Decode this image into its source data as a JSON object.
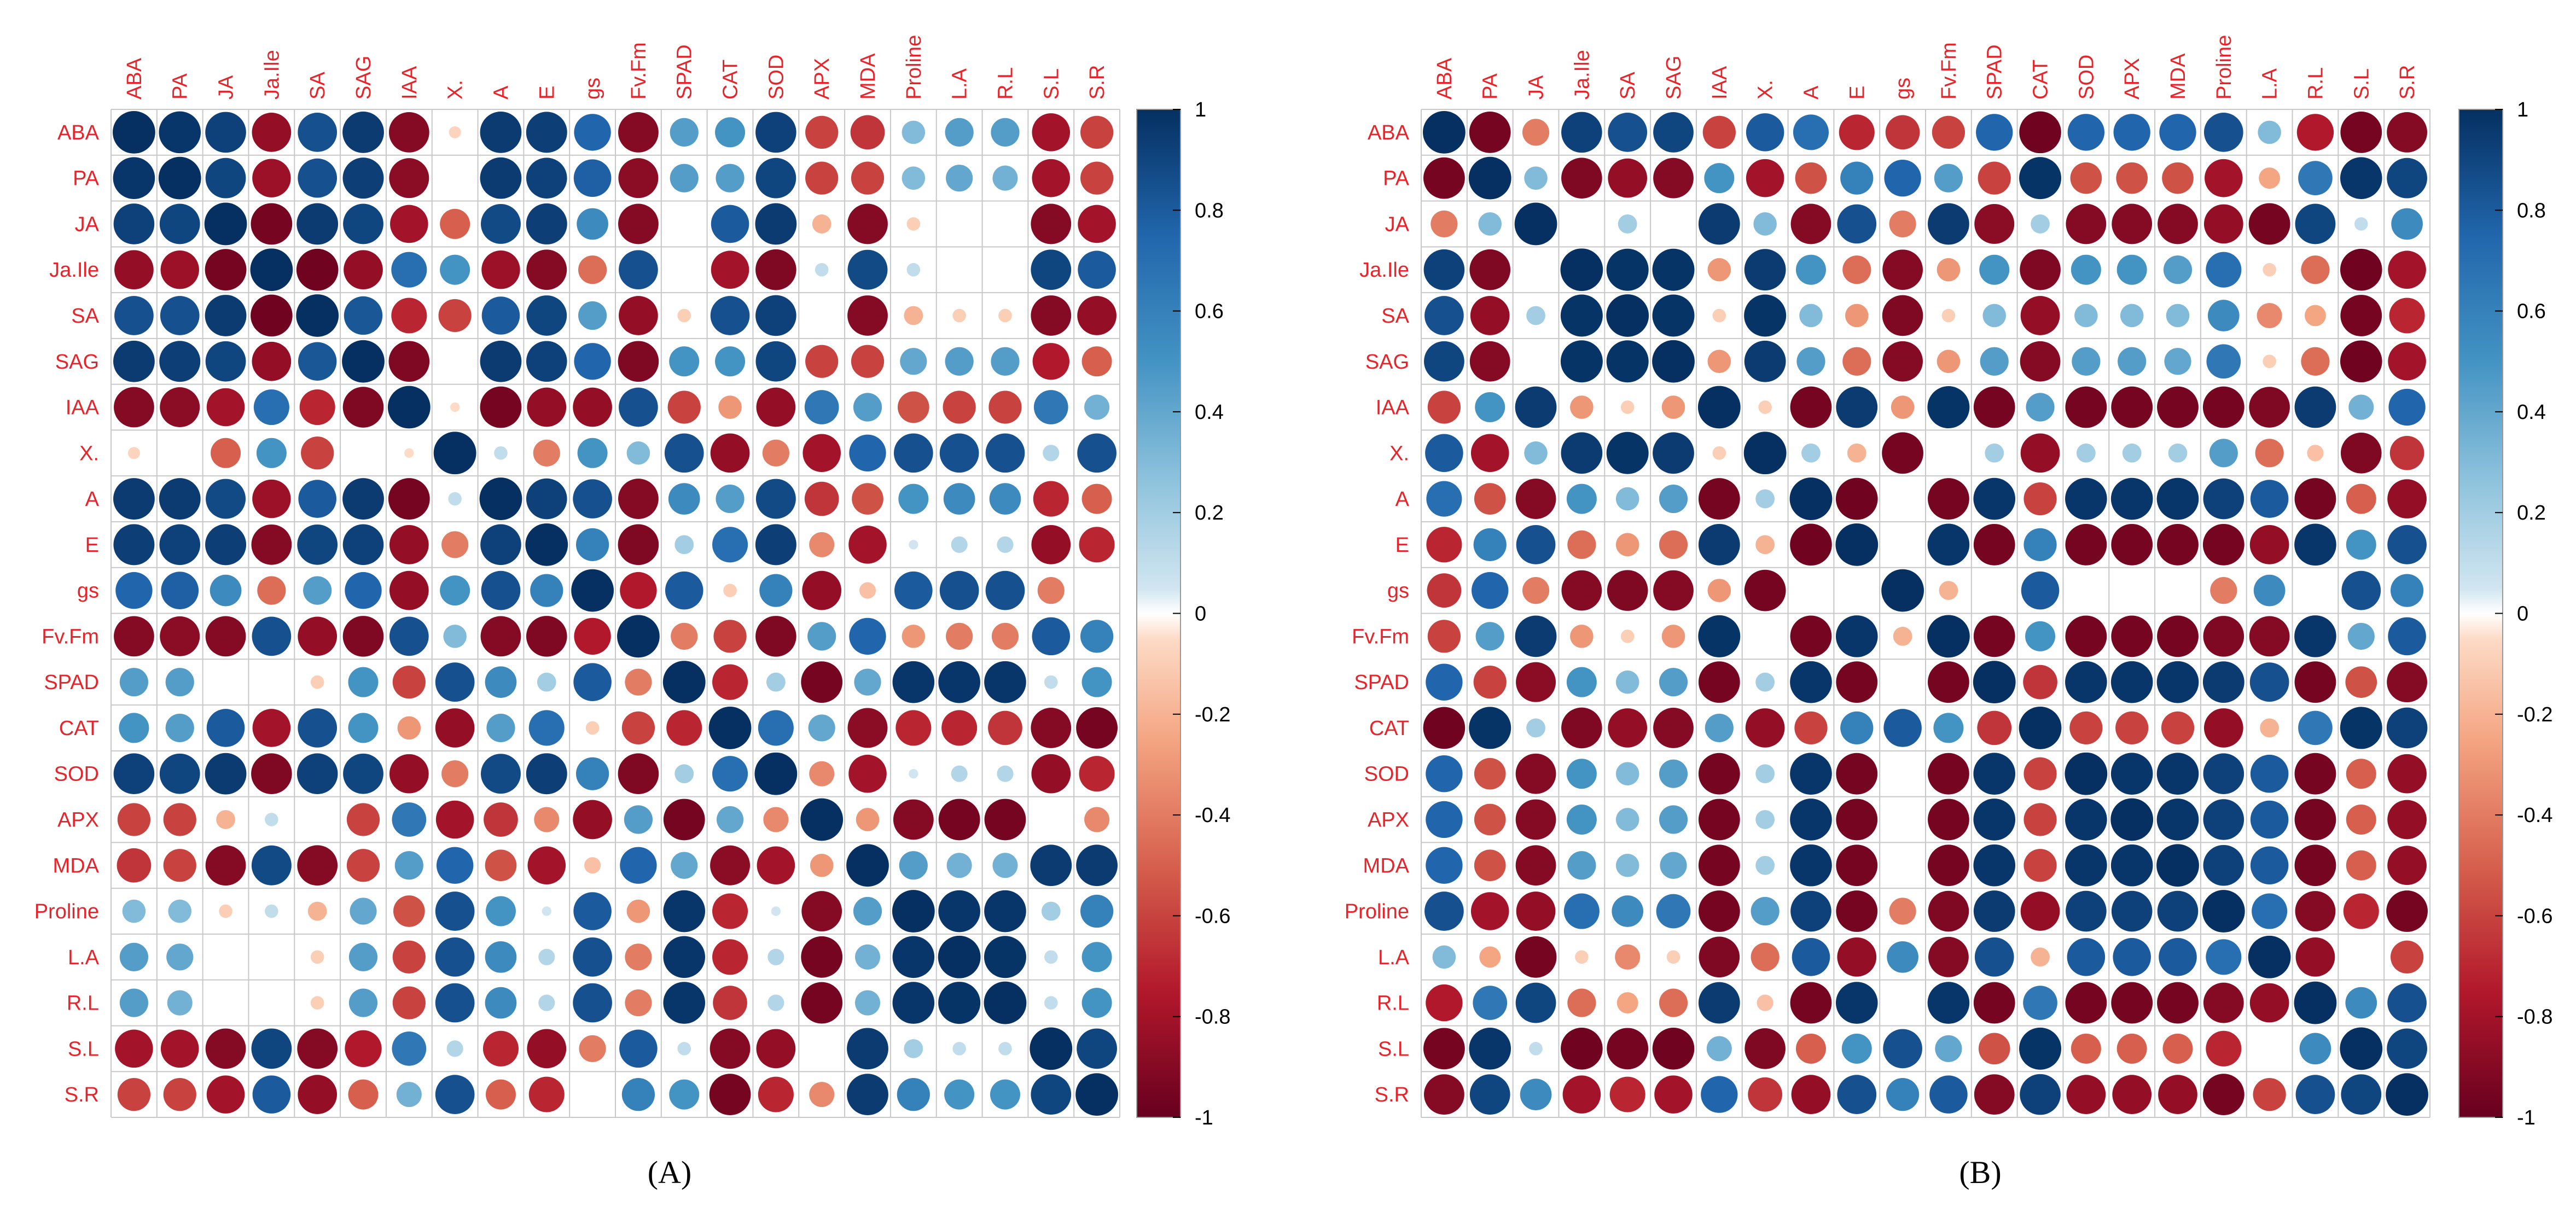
{
  "colors": {
    "neg": "#67001F",
    "mid": "#FFFFFF",
    "pos": "#053061",
    "label": "#E8242A",
    "grid": "#C8C8C8"
  },
  "colorbar": {
    "ticks": [
      "1",
      "0.8",
      "0.6",
      "0.4",
      "0.2",
      "0",
      "-0.2",
      "-0.4",
      "-0.6",
      "-0.8",
      "-1"
    ]
  },
  "panels": [
    {
      "label_text": "(A)"
    },
    {
      "label_text": "(B)"
    }
  ],
  "chart_data": [
    {
      "type": "heatmap",
      "title": "",
      "variables": [
        "ABA",
        "PA",
        "JA",
        "Ja.Ile",
        "SA",
        "SAG",
        "IAA",
        "X.",
        "A",
        "E",
        "gs",
        "Fv.Fm",
        "SPAD",
        "CAT",
        "SOD",
        "APX",
        "MDA",
        "Proline",
        "L.A",
        "R.L",
        "S.L",
        "S.R"
      ],
      "value_range": [
        -1,
        1
      ],
      "colorbar_ticks": [
        1,
        0.8,
        0.6,
        0.4,
        0.2,
        0,
        -0.2,
        -0.4,
        -0.6,
        -0.8,
        -1
      ],
      "matrix": [
        [
          1,
          0.97,
          0.92,
          -0.85,
          0.85,
          0.95,
          -0.9,
          -0.08,
          0.95,
          0.93,
          0.75,
          -0.9,
          0.45,
          0.5,
          0.92,
          -0.6,
          -0.65,
          0.3,
          0.45,
          0.45,
          -0.8,
          -0.6
        ],
        [
          0.97,
          1,
          0.9,
          -0.82,
          0.85,
          0.93,
          -0.88,
          0,
          0.95,
          0.92,
          0.78,
          -0.88,
          0.45,
          0.45,
          0.9,
          -0.6,
          -0.6,
          0.3,
          0.4,
          0.35,
          -0.8,
          -0.6
        ],
        [
          0.92,
          0.9,
          1,
          -0.95,
          0.95,
          0.9,
          -0.8,
          -0.5,
          0.88,
          0.93,
          0.55,
          -0.9,
          0,
          0.8,
          0.95,
          -0.2,
          -0.9,
          -0.1,
          0,
          0,
          -0.9,
          -0.8
        ],
        [
          -0.85,
          -0.82,
          -0.95,
          1,
          -0.97,
          -0.85,
          0.7,
          0.5,
          -0.82,
          -0.9,
          -0.45,
          0.85,
          0,
          -0.8,
          -0.92,
          0.1,
          0.88,
          0.1,
          0,
          0,
          0.9,
          0.8
        ],
        [
          0.85,
          0.85,
          0.95,
          -0.97,
          1,
          0.82,
          -0.7,
          -0.6,
          0.8,
          0.9,
          0.45,
          -0.85,
          -0.1,
          0.85,
          0.92,
          0,
          -0.9,
          -0.2,
          -0.1,
          -0.1,
          -0.9,
          -0.85
        ],
        [
          0.95,
          0.93,
          0.9,
          -0.85,
          0.82,
          1,
          -0.92,
          0,
          0.95,
          0.92,
          0.75,
          -0.92,
          0.5,
          0.5,
          0.9,
          -0.6,
          -0.6,
          0.4,
          0.45,
          0.45,
          -0.75,
          -0.5
        ],
        [
          -0.9,
          -0.88,
          -0.8,
          0.7,
          -0.7,
          -0.92,
          1,
          -0.05,
          -0.95,
          -0.85,
          -0.85,
          0.85,
          -0.6,
          -0.3,
          -0.85,
          0.65,
          0.45,
          -0.55,
          -0.6,
          -0.6,
          0.65,
          0.35
        ],
        [
          -0.08,
          0,
          -0.5,
          0.5,
          -0.6,
          0,
          -0.05,
          1,
          0.1,
          -0.4,
          0.5,
          0.3,
          0.85,
          -0.85,
          -0.4,
          -0.8,
          0.75,
          0.85,
          0.85,
          0.85,
          0.15,
          0.85
        ],
        [
          0.95,
          0.95,
          0.88,
          -0.82,
          0.8,
          0.95,
          -0.95,
          0.1,
          1,
          0.92,
          0.85,
          -0.9,
          0.55,
          0.45,
          0.88,
          -0.65,
          -0.55,
          0.5,
          0.55,
          0.55,
          -0.7,
          -0.5
        ],
        [
          0.93,
          0.92,
          0.93,
          -0.9,
          0.9,
          0.92,
          -0.85,
          -0.4,
          0.92,
          1,
          0.6,
          -0.92,
          0.2,
          0.7,
          0.93,
          -0.35,
          -0.8,
          0.05,
          0.15,
          0.15,
          -0.85,
          -0.7
        ],
        [
          0.75,
          0.78,
          0.55,
          -0.45,
          0.45,
          0.75,
          -0.85,
          0.5,
          0.85,
          0.6,
          1,
          -0.75,
          0.8,
          -0.1,
          0.6,
          -0.85,
          -0.15,
          0.8,
          0.85,
          0.85,
          -0.4,
          0
        ],
        [
          -0.9,
          -0.88,
          -0.9,
          0.85,
          -0.85,
          -0.92,
          0.85,
          0.3,
          -0.9,
          -0.92,
          -0.75,
          1,
          -0.4,
          -0.6,
          -0.92,
          0.45,
          0.75,
          -0.3,
          -0.4,
          -0.4,
          0.8,
          0.6
        ],
        [
          0.45,
          0.45,
          0,
          0,
          -0.1,
          0.5,
          -0.6,
          0.85,
          0.55,
          0.2,
          0.8,
          -0.4,
          1,
          -0.7,
          0.2,
          -0.95,
          0.4,
          0.97,
          0.97,
          0.97,
          0.1,
          0.5
        ],
        [
          0.5,
          0.45,
          0.8,
          -0.8,
          0.85,
          0.5,
          -0.3,
          -0.85,
          0.45,
          0.7,
          -0.1,
          -0.6,
          -0.7,
          1,
          0.7,
          0.4,
          -0.88,
          -0.7,
          -0.7,
          -0.65,
          -0.9,
          -0.95
        ],
        [
          0.92,
          0.9,
          0.95,
          -0.92,
          0.92,
          0.9,
          -0.85,
          -0.4,
          0.88,
          0.93,
          0.6,
          -0.92,
          0.2,
          0.7,
          1,
          -0.35,
          -0.8,
          0.05,
          0.15,
          0.15,
          -0.85,
          -0.7
        ],
        [
          -0.6,
          -0.6,
          -0.2,
          0.1,
          0,
          -0.6,
          0.65,
          -0.8,
          -0.65,
          -0.35,
          -0.85,
          0.45,
          -0.95,
          0.4,
          -0.35,
          1,
          -0.3,
          -0.9,
          -0.95,
          -0.95,
          0,
          -0.35
        ],
        [
          -0.65,
          -0.6,
          -0.9,
          0.88,
          -0.9,
          -0.6,
          0.45,
          0.75,
          -0.55,
          -0.8,
          -0.15,
          0.75,
          0.4,
          -0.88,
          -0.8,
          -0.3,
          1,
          0.45,
          0.35,
          0.35,
          0.95,
          0.95
        ],
        [
          0.3,
          0.3,
          -0.1,
          0.1,
          -0.2,
          0.4,
          -0.55,
          0.85,
          0.5,
          0.05,
          0.8,
          -0.3,
          0.97,
          -0.7,
          0.05,
          -0.9,
          0.45,
          1,
          0.97,
          0.97,
          0.2,
          0.6
        ],
        [
          0.45,
          0.4,
          0,
          0,
          -0.1,
          0.45,
          -0.6,
          0.85,
          0.55,
          0.15,
          0.85,
          -0.4,
          0.97,
          -0.7,
          0.15,
          -0.95,
          0.35,
          0.97,
          1,
          0.98,
          0.1,
          0.5
        ],
        [
          0.45,
          0.35,
          0,
          0,
          -0.1,
          0.45,
          -0.6,
          0.85,
          0.55,
          0.15,
          0.85,
          -0.4,
          0.97,
          -0.65,
          0.15,
          -0.95,
          0.35,
          0.97,
          0.98,
          1,
          0.1,
          0.5
        ],
        [
          -0.8,
          -0.8,
          -0.9,
          0.9,
          -0.9,
          -0.75,
          0.65,
          0.15,
          -0.7,
          -0.85,
          -0.4,
          0.8,
          0.1,
          -0.9,
          -0.85,
          0,
          0.95,
          0.2,
          0.1,
          0.1,
          1,
          0.9
        ],
        [
          -0.6,
          -0.6,
          -0.8,
          0.8,
          -0.85,
          -0.5,
          0.35,
          0.85,
          -0.5,
          -0.7,
          0,
          0.6,
          0.5,
          -0.95,
          -0.7,
          -0.35,
          0.95,
          0.6,
          0.5,
          0.5,
          0.9,
          1
        ]
      ]
    },
    {
      "type": "heatmap",
      "title": "",
      "variables": [
        "ABA",
        "PA",
        "JA",
        "Ja.Ile",
        "SA",
        "SAG",
        "IAA",
        "X.",
        "A",
        "E",
        "gs",
        "Fv.Fm",
        "SPAD",
        "CAT",
        "SOD",
        "APX",
        "MDA",
        "Proline",
        "L.A",
        "R.L",
        "S.L",
        "S.R"
      ],
      "value_range": [
        -1,
        1
      ],
      "colorbar_ticks": [
        1,
        0.8,
        0.6,
        0.4,
        0.2,
        0,
        -0.2,
        -0.4,
        -0.6,
        -0.8,
        -1
      ],
      "matrix": [
        [
          1,
          -0.95,
          -0.4,
          0.92,
          0.85,
          0.9,
          -0.6,
          0.8,
          0.7,
          -0.7,
          -0.65,
          -0.6,
          0.75,
          -0.97,
          0.75,
          0.75,
          0.75,
          0.85,
          0.3,
          -0.75,
          -0.95,
          -0.9
        ],
        [
          -0.95,
          1,
          0.3,
          -0.92,
          -0.85,
          -0.9,
          0.5,
          -0.8,
          -0.55,
          0.6,
          0.75,
          0.45,
          -0.6,
          0.98,
          -0.55,
          -0.55,
          -0.55,
          -0.8,
          -0.25,
          0.65,
          0.97,
          0.9
        ],
        [
          -0.4,
          0.3,
          1,
          0,
          0.2,
          0,
          0.95,
          0.3,
          -0.9,
          0.85,
          -0.4,
          0.95,
          -0.88,
          0.2,
          -0.9,
          -0.9,
          -0.9,
          -0.85,
          -0.95,
          0.9,
          0.1,
          0.55
        ],
        [
          0.92,
          -0.92,
          0,
          1,
          0.98,
          0.98,
          -0.3,
          0.95,
          0.5,
          -0.45,
          -0.9,
          -0.3,
          0.5,
          -0.92,
          0.5,
          0.5,
          0.45,
          0.7,
          -0.1,
          -0.45,
          -0.97,
          -0.8
        ],
        [
          0.85,
          -0.85,
          0.2,
          0.98,
          1,
          0.98,
          -0.1,
          0.98,
          0.3,
          -0.3,
          -0.92,
          -0.1,
          0.3,
          -0.85,
          0.3,
          0.3,
          0.3,
          0.55,
          -0.35,
          -0.25,
          -0.95,
          -0.7
        ],
        [
          0.9,
          -0.9,
          0,
          0.98,
          0.98,
          1,
          -0.3,
          0.95,
          0.45,
          -0.45,
          -0.9,
          -0.3,
          0.45,
          -0.9,
          0.45,
          0.45,
          0.4,
          0.65,
          -0.1,
          -0.45,
          -0.97,
          -0.8
        ],
        [
          -0.6,
          0.5,
          0.95,
          -0.3,
          -0.1,
          -0.3,
          1,
          -0.1,
          -0.95,
          0.95,
          -0.3,
          0.98,
          -0.95,
          0.45,
          -0.95,
          -0.95,
          -0.95,
          -0.95,
          -0.92,
          0.95,
          0.35,
          0.75
        ],
        [
          0.8,
          -0.8,
          0.3,
          0.95,
          0.98,
          0.95,
          -0.1,
          1,
          0.2,
          -0.2,
          -0.95,
          0,
          0.2,
          -0.85,
          0.2,
          0.2,
          0.2,
          0.45,
          -0.45,
          -0.15,
          -0.92,
          -0.65
        ],
        [
          0.7,
          -0.55,
          -0.9,
          0.5,
          0.3,
          0.45,
          -0.95,
          0.2,
          1,
          -0.97,
          0,
          -0.95,
          0.97,
          -0.6,
          0.97,
          0.97,
          0.97,
          0.92,
          0.8,
          -0.95,
          -0.5,
          -0.85
        ],
        [
          -0.7,
          0.6,
          0.85,
          -0.45,
          -0.3,
          -0.45,
          0.95,
          -0.2,
          -0.97,
          1,
          0,
          0.97,
          -0.95,
          0.6,
          -0.95,
          -0.95,
          -0.95,
          -0.95,
          -0.85,
          0.97,
          0.5,
          0.85
        ],
        [
          -0.65,
          0.75,
          -0.4,
          -0.9,
          -0.92,
          -0.9,
          -0.3,
          -0.95,
          0,
          0,
          1,
          -0.2,
          0,
          0.8,
          0,
          0,
          0,
          -0.4,
          0.55,
          0,
          0.85,
          0.6
        ],
        [
          -0.6,
          0.45,
          0.95,
          -0.3,
          -0.1,
          -0.3,
          0.98,
          0,
          -0.95,
          0.97,
          -0.2,
          1,
          -0.95,
          0.5,
          -0.95,
          -0.95,
          -0.95,
          -0.92,
          -0.9,
          0.97,
          0.4,
          0.8
        ],
        [
          0.75,
          -0.6,
          -0.88,
          0.5,
          0.3,
          0.45,
          -0.95,
          0.2,
          0.97,
          -0.95,
          0,
          -0.95,
          1,
          -0.65,
          0.97,
          0.97,
          0.97,
          0.95,
          0.85,
          -0.95,
          -0.55,
          -0.9
        ],
        [
          -0.97,
          0.98,
          0.2,
          -0.92,
          -0.85,
          -0.9,
          0.45,
          -0.85,
          -0.6,
          0.6,
          0.8,
          0.5,
          -0.65,
          1,
          -0.6,
          -0.6,
          -0.6,
          -0.85,
          -0.2,
          0.65,
          0.98,
          0.92
        ],
        [
          0.75,
          -0.55,
          -0.9,
          0.5,
          0.3,
          0.45,
          -0.95,
          0.2,
          0.97,
          -0.95,
          0,
          -0.95,
          0.97,
          -0.6,
          1,
          0.97,
          0.97,
          0.92,
          0.8,
          -0.95,
          -0.5,
          -0.85
        ],
        [
          0.75,
          -0.55,
          -0.9,
          0.5,
          0.3,
          0.45,
          -0.95,
          0.2,
          0.97,
          -0.95,
          0,
          -0.95,
          0.97,
          -0.6,
          0.97,
          1,
          0.97,
          0.92,
          0.8,
          -0.95,
          -0.5,
          -0.85
        ],
        [
          0.75,
          -0.55,
          -0.9,
          0.45,
          0.3,
          0.4,
          -0.95,
          0.2,
          0.97,
          -0.95,
          0,
          -0.95,
          0.97,
          -0.6,
          0.97,
          0.97,
          1,
          0.92,
          0.8,
          -0.95,
          -0.5,
          -0.85
        ],
        [
          0.85,
          -0.8,
          -0.85,
          0.7,
          0.55,
          0.65,
          -0.95,
          0.45,
          0.92,
          -0.95,
          -0.4,
          -0.92,
          0.95,
          -0.85,
          0.92,
          0.92,
          0.92,
          1,
          0.7,
          -0.9,
          -0.7,
          -0.95
        ],
        [
          0.3,
          -0.25,
          -0.95,
          -0.1,
          -0.35,
          -0.1,
          -0.92,
          -0.45,
          0.8,
          -0.85,
          0.55,
          -0.9,
          0.85,
          -0.2,
          0.8,
          0.8,
          0.8,
          0.7,
          1,
          -0.85,
          0,
          -0.6
        ],
        [
          -0.75,
          0.65,
          0.9,
          -0.45,
          -0.25,
          -0.45,
          0.95,
          -0.15,
          -0.95,
          0.97,
          0,
          0.97,
          -0.95,
          0.65,
          -0.95,
          -0.95,
          -0.95,
          -0.9,
          -0.85,
          1,
          0.55,
          0.85
        ],
        [
          -0.95,
          0.97,
          0.1,
          -0.97,
          -0.95,
          -0.97,
          0.35,
          -0.92,
          -0.5,
          0.5,
          0.85,
          0.4,
          -0.55,
          0.98,
          -0.5,
          -0.5,
          -0.5,
          -0.7,
          0,
          0.55,
          1,
          0.9
        ],
        [
          -0.9,
          0.9,
          0.55,
          -0.8,
          -0.7,
          -0.8,
          0.75,
          -0.65,
          -0.85,
          0.85,
          0.6,
          0.8,
          -0.9,
          0.92,
          -0.85,
          -0.85,
          -0.85,
          -0.95,
          -0.6,
          0.85,
          0.9,
          1
        ]
      ]
    }
  ]
}
